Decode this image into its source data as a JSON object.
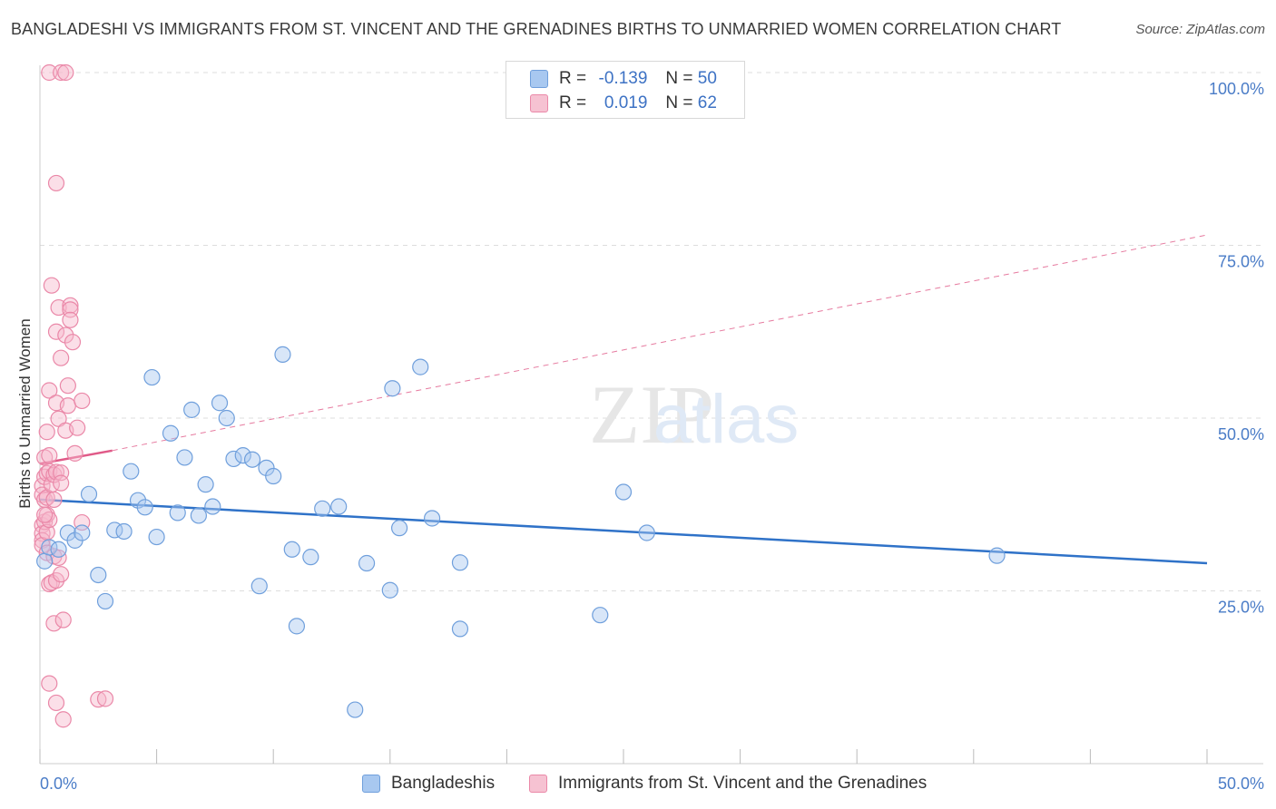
{
  "title": "BANGLADESHI VS IMMIGRANTS FROM ST. VINCENT AND THE GRENADINES BIRTHS TO UNMARRIED WOMEN CORRELATION CHART",
  "source": "Source: ZipAtlas.com",
  "watermark": {
    "zip": "ZIP",
    "atlas": "atlas"
  },
  "legend": {
    "rows": [
      {
        "r_label": "R =",
        "r_value": "-0.139",
        "n_label": "N =",
        "n_value": "50"
      },
      {
        "r_label": "R =",
        "r_value": "0.019",
        "n_label": "N =",
        "n_value": "62"
      }
    ]
  },
  "bottom_legend": {
    "series1": "Bangladeshis",
    "series2": "Immigrants from St. Vincent and the Grenadines"
  },
  "colors": {
    "blue_fill": "#a8c8f0",
    "blue_stroke": "#6f9fdc",
    "blue_line": "#2f72c8",
    "pink_fill": "#f6b8cc",
    "pink_stroke": "#ea88a8",
    "pink_line": "#e05a88",
    "axis_label": "#4a7cc7",
    "grid": "#dddddd"
  },
  "chart_data": {
    "type": "scatter",
    "title": "BANGLADESHI VS IMMIGRANTS FROM ST. VINCENT AND THE GRENADINES BIRTHS TO UNMARRIED WOMEN CORRELATION CHART",
    "xlabel": "",
    "ylabel": "Births to Unmarried Women",
    "xlim": [
      0,
      50
    ],
    "ylim": [
      0,
      100
    ],
    "x_tick_labels": [
      {
        "v": 0,
        "label": "0.0%"
      },
      {
        "v": 50,
        "label": "50.0%"
      }
    ],
    "y_tick_labels": [
      {
        "v": 100,
        "label": "100.0%"
      },
      {
        "v": 75,
        "label": "75.0%"
      },
      {
        "v": 50,
        "label": "50.0%"
      },
      {
        "v": 25,
        "label": "25.0%"
      }
    ],
    "series": [
      {
        "name": "Bangladeshis",
        "R": -0.139,
        "N": 50,
        "trend": {
          "x": [
            0,
            50
          ],
          "y": [
            38.2,
            29.0
          ]
        },
        "points": [
          [
            0.2,
            29.3
          ],
          [
            0.4,
            31.3
          ],
          [
            0.8,
            31.0
          ],
          [
            1.2,
            33.4
          ],
          [
            1.5,
            32.3
          ],
          [
            1.8,
            33.4
          ],
          [
            2.1,
            39.0
          ],
          [
            2.5,
            27.3
          ],
          [
            2.8,
            23.5
          ],
          [
            3.2,
            33.8
          ],
          [
            3.6,
            33.6
          ],
          [
            3.9,
            42.3
          ],
          [
            4.2,
            38.1
          ],
          [
            4.5,
            37.1
          ],
          [
            4.8,
            55.9
          ],
          [
            5.0,
            32.8
          ],
          [
            5.6,
            47.8
          ],
          [
            5.9,
            36.3
          ],
          [
            6.2,
            44.3
          ],
          [
            6.5,
            51.2
          ],
          [
            6.8,
            35.9
          ],
          [
            7.1,
            40.4
          ],
          [
            7.4,
            37.2
          ],
          [
            7.7,
            52.2
          ],
          [
            8.0,
            50.0
          ],
          [
            8.3,
            44.1
          ],
          [
            8.7,
            44.6
          ],
          [
            9.1,
            44.0
          ],
          [
            9.4,
            25.7
          ],
          [
            9.7,
            42.8
          ],
          [
            10.0,
            41.6
          ],
          [
            10.4,
            59.2
          ],
          [
            10.8,
            31.0
          ],
          [
            11.0,
            19.9
          ],
          [
            11.6,
            29.9
          ],
          [
            12.1,
            36.9
          ],
          [
            12.8,
            37.2
          ],
          [
            13.5,
            7.8
          ],
          [
            14.0,
            29.0
          ],
          [
            15.0,
            25.1
          ],
          [
            15.1,
            54.3
          ],
          [
            15.4,
            34.1
          ],
          [
            16.3,
            57.4
          ],
          [
            16.8,
            35.5
          ],
          [
            18.0,
            29.1
          ],
          [
            18.0,
            19.5
          ],
          [
            24.0,
            21.5
          ],
          [
            25.0,
            39.3
          ],
          [
            26.0,
            33.4
          ],
          [
            41.0,
            30.1
          ]
        ]
      },
      {
        "name": "Immigrants from St. Vincent and the Grenadines",
        "R": 0.019,
        "N": 62,
        "trend": {
          "x": [
            0,
            3.1
          ],
          "y": [
            43.4,
            45.3
          ]
        },
        "trend_extended": {
          "x": [
            3.1,
            50
          ],
          "y": [
            45.3,
            76.5
          ]
        },
        "points": [
          [
            0.1,
            40.2
          ],
          [
            0.1,
            38.9
          ],
          [
            0.1,
            34.5
          ],
          [
            0.1,
            33.3
          ],
          [
            0.1,
            32.3
          ],
          [
            0.1,
            31.6
          ],
          [
            0.2,
            44.3
          ],
          [
            0.2,
            41.5
          ],
          [
            0.2,
            38.2
          ],
          [
            0.2,
            35.0
          ],
          [
            0.3,
            48.0
          ],
          [
            0.3,
            42.0
          ],
          [
            0.3,
            38.5
          ],
          [
            0.3,
            36.0
          ],
          [
            0.3,
            33.5
          ],
          [
            0.3,
            30.5
          ],
          [
            0.4,
            100.0
          ],
          [
            0.4,
            54.0
          ],
          [
            0.4,
            44.6
          ],
          [
            0.4,
            42.3
          ],
          [
            0.4,
            35.3
          ],
          [
            0.4,
            26.0
          ],
          [
            0.4,
            11.6
          ],
          [
            0.5,
            69.2
          ],
          [
            0.5,
            40.4
          ],
          [
            0.5,
            26.2
          ],
          [
            0.6,
            41.8
          ],
          [
            0.6,
            38.2
          ],
          [
            0.6,
            20.3
          ],
          [
            0.6,
            30.0
          ],
          [
            0.7,
            84.0
          ],
          [
            0.7,
            62.5
          ],
          [
            0.7,
            52.2
          ],
          [
            0.7,
            42.2
          ],
          [
            0.7,
            26.5
          ],
          [
            0.7,
            8.8
          ],
          [
            0.8,
            66.0
          ],
          [
            0.8,
            49.9
          ],
          [
            0.8,
            29.8
          ],
          [
            0.9,
            100.0
          ],
          [
            0.9,
            58.7
          ],
          [
            0.9,
            42.1
          ],
          [
            0.9,
            40.6
          ],
          [
            0.9,
            27.4
          ],
          [
            1.0,
            20.8
          ],
          [
            1.0,
            6.4
          ],
          [
            1.1,
            100.0
          ],
          [
            1.1,
            62.0
          ],
          [
            1.1,
            48.2
          ],
          [
            1.2,
            54.7
          ],
          [
            1.2,
            51.8
          ],
          [
            1.3,
            66.3
          ],
          [
            1.3,
            65.7
          ],
          [
            1.3,
            64.2
          ],
          [
            1.4,
            61.0
          ],
          [
            1.5,
            44.9
          ],
          [
            1.6,
            48.6
          ],
          [
            1.8,
            52.5
          ],
          [
            1.8,
            34.9
          ],
          [
            2.5,
            9.3
          ],
          [
            2.8,
            9.4
          ],
          [
            0.2,
            36.0
          ]
        ]
      }
    ]
  }
}
